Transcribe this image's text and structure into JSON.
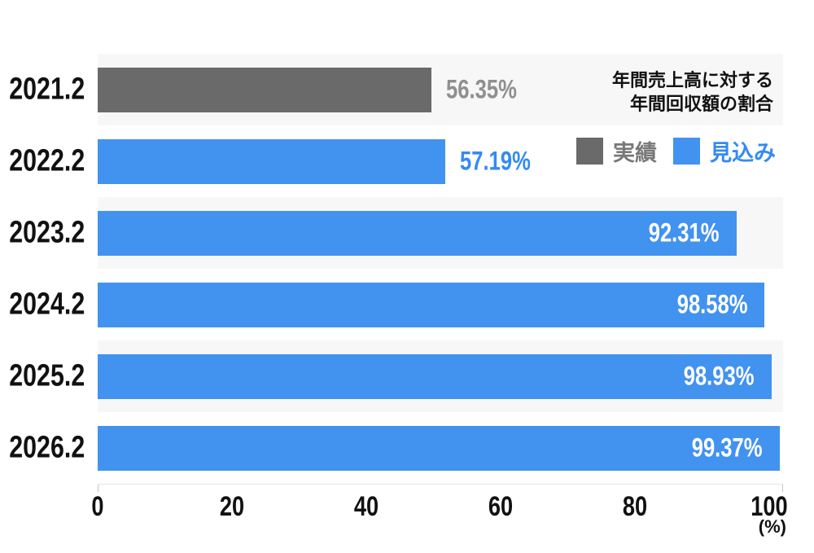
{
  "chart_data": {
    "type": "bar",
    "orientation": "horizontal",
    "title_lines": [
      "年間売上高に対する",
      "年間回収額の割合"
    ],
    "categories": [
      "2021.2",
      "2022.2",
      "2023.2",
      "2024.2",
      "2025.2",
      "2026.2"
    ],
    "rows": [
      {
        "category": "2021.2",
        "value": 56.35,
        "value_label": "56.35%",
        "series": "actual",
        "bar_frac": 48.7,
        "label_position": "outside"
      },
      {
        "category": "2022.2",
        "value": 57.19,
        "value_label": "57.19%",
        "series": "forecast",
        "bar_frac": 50.7,
        "label_position": "outside"
      },
      {
        "category": "2023.2",
        "value": 92.31,
        "value_label": "92.31%",
        "series": "forecast",
        "bar_frac": 93.2,
        "label_position": "inside"
      },
      {
        "category": "2024.2",
        "value": 98.58,
        "value_label": "98.58%",
        "series": "forecast",
        "bar_frac": 97.3,
        "label_position": "inside"
      },
      {
        "category": "2025.2",
        "value": 98.93,
        "value_label": "98.93%",
        "series": "forecast",
        "bar_frac": 98.3,
        "label_position": "inside"
      },
      {
        "category": "2026.2",
        "value": 99.37,
        "value_label": "99.37%",
        "series": "forecast",
        "bar_frac": 99.5,
        "label_position": "inside"
      }
    ],
    "legend": [
      {
        "key": "actual",
        "label": "実績"
      },
      {
        "key": "forecast",
        "label": "見込み"
      }
    ],
    "xticks": [
      0,
      20,
      40,
      60,
      80,
      100
    ],
    "x_axis_display_max": 102,
    "axis_unit": "(%)",
    "xlabel": "",
    "ylabel": "",
    "grid": false,
    "legend_position": "top-right"
  },
  "colors": {
    "bar_actual": "#6A6A6A",
    "bar_forecast": "#4292F0",
    "label_outside_actual": "#8F8F8F",
    "label_outside_forecast": "#348AF3",
    "legend_text_actual": "#787878",
    "legend_text_forecast": "#348AF3",
    "row_stripe": "#F7F7F7",
    "text": "#111111"
  }
}
